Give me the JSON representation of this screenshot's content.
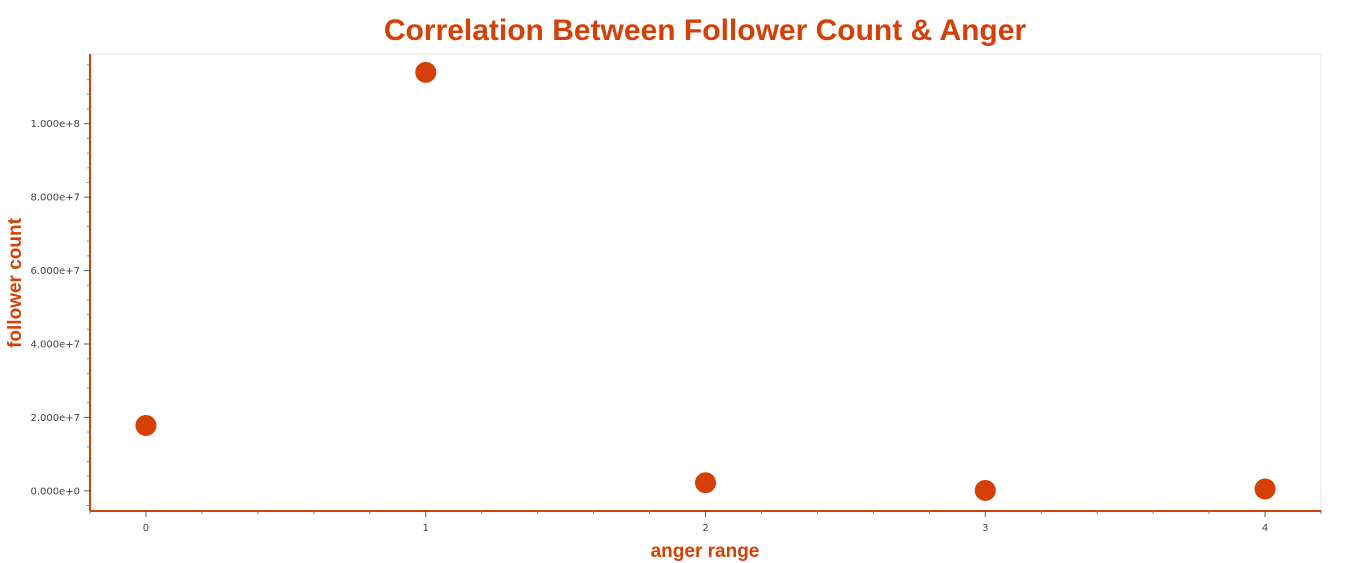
{
  "colors": {
    "accent": "#d63f05",
    "axis": "#d63f05",
    "tick_text": "#444444",
    "frame": "#e6e6e6",
    "background": "#ffffff"
  },
  "chart_data": {
    "type": "scatter",
    "title": "Correlation Between Follower Count & Anger",
    "xlabel": "anger range",
    "ylabel": "follower count",
    "xlim": [
      -0.2,
      4.2
    ],
    "ylim": [
      -5500000,
      119000000
    ],
    "x_ticks": [
      0,
      1,
      2,
      3,
      4
    ],
    "x_tick_labels": [
      "0",
      "1",
      "2",
      "3",
      "4"
    ],
    "y_ticks": [
      0,
      20000000,
      40000000,
      60000000,
      80000000,
      100000000
    ],
    "y_tick_labels": [
      "0.000e+0",
      "2.000e+7",
      "4.000e+7",
      "6.000e+7",
      "8.000e+7",
      "1.000e+8"
    ],
    "grid": false,
    "legend": "none",
    "points": [
      {
        "x": 0,
        "y": 17800000
      },
      {
        "x": 1,
        "y": 114000000
      },
      {
        "x": 2,
        "y": 2200000
      },
      {
        "x": 3,
        "y": 100000
      },
      {
        "x": 4,
        "y": 500000
      }
    ]
  }
}
